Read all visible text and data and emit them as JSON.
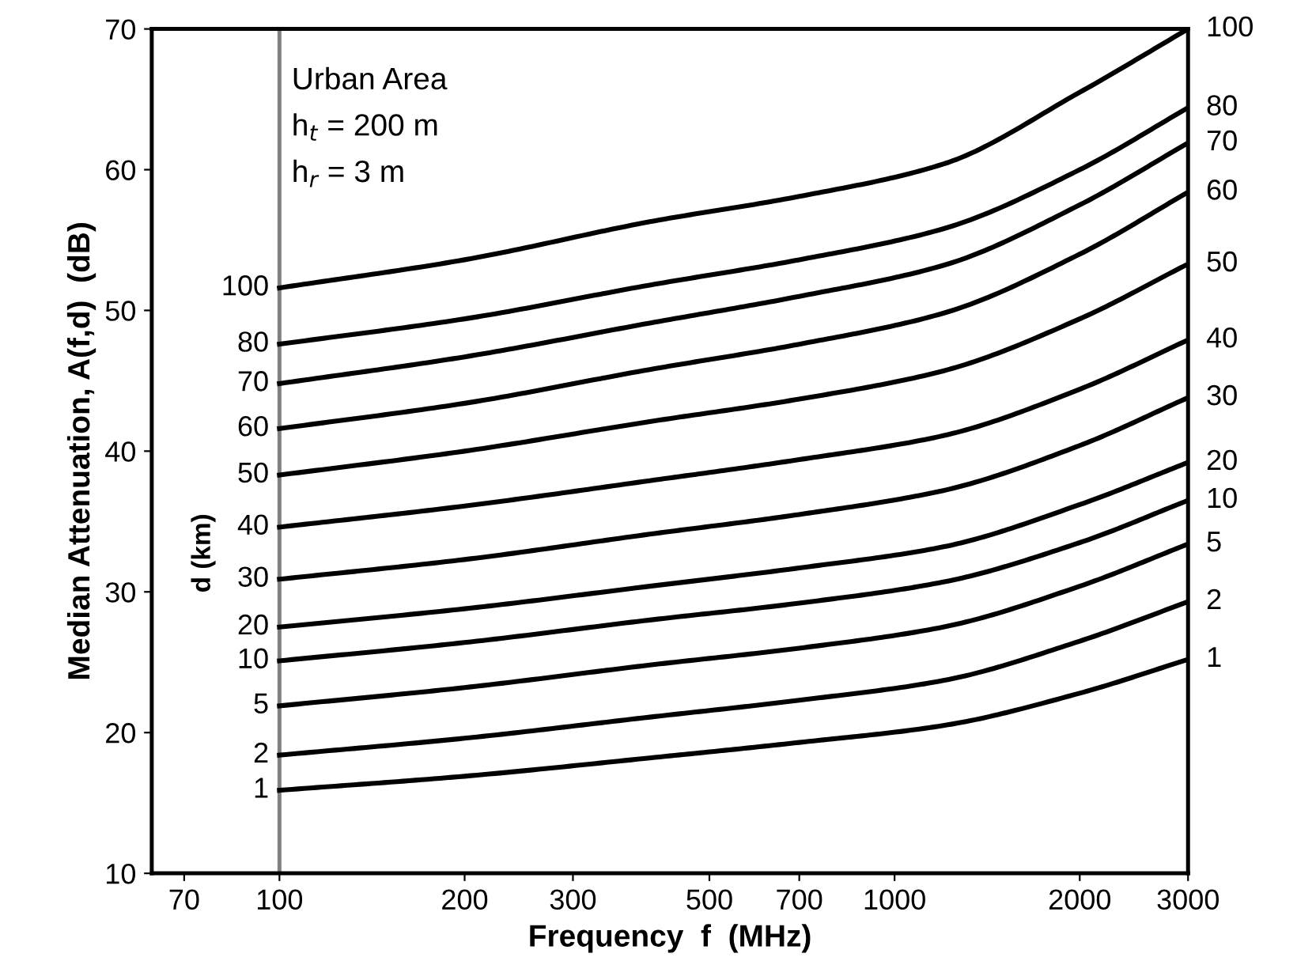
{
  "chart_data": {
    "type": "line",
    "xlabel": "Frequency  f  (MHz)",
    "ylabel": "Median Attenuation, A(f,d)  (dB)",
    "legend_title": "d (km)",
    "log": "x",
    "xlim": [
      62,
      3000
    ],
    "xticks": [
      70,
      100,
      200,
      300,
      500,
      700,
      1000,
      2000,
      3000
    ],
    "ylim": [
      10,
      70
    ],
    "yticks": [
      10,
      20,
      30,
      40,
      50,
      60,
      70
    ],
    "x": [
      100,
      200,
      400,
      700,
      1200,
      2000,
      3000
    ],
    "grid": false,
    "marker": "none",
    "line_style": "solid",
    "ref_lines": [
      {
        "axis": "x",
        "value": 100,
        "color": "#808080"
      }
    ],
    "annotations": [
      "Urban Area",
      "h$_{t}$ = 200 m",
      "h$_{r}$ = 3 m"
    ],
    "series": [
      {
        "name": "100",
        "color": "#000000",
        "values": [
          51.6,
          53.6,
          56.3,
          58.1,
          60.4,
          65.5,
          70.0
        ]
      },
      {
        "name": "80",
        "color": "#000000",
        "values": [
          47.6,
          49.4,
          51.8,
          53.6,
          55.8,
          60.0,
          64.4
        ]
      },
      {
        "name": "70",
        "color": "#000000",
        "values": [
          44.8,
          46.7,
          49.1,
          51.0,
          53.2,
          57.5,
          61.9
        ]
      },
      {
        "name": "60",
        "color": "#000000",
        "values": [
          41.6,
          43.4,
          45.8,
          47.6,
          49.8,
          54.0,
          58.4
        ]
      },
      {
        "name": "50",
        "color": "#000000",
        "values": [
          38.3,
          40.0,
          42.1,
          43.7,
          45.7,
          49.4,
          53.3
        ]
      },
      {
        "name": "40",
        "color": "#000000",
        "values": [
          34.6,
          36.1,
          37.9,
          39.4,
          41.1,
          44.4,
          47.9
        ]
      },
      {
        "name": "30",
        "color": "#000000",
        "values": [
          30.9,
          32.3,
          34.1,
          35.5,
          37.2,
          40.4,
          43.8
        ]
      },
      {
        "name": "20",
        "color": "#000000",
        "values": [
          27.5,
          28.8,
          30.4,
          31.7,
          33.2,
          36.2,
          39.2
        ]
      },
      {
        "name": "10",
        "color": "#000000",
        "values": [
          25.1,
          26.4,
          28.0,
          29.2,
          30.7,
          33.5,
          36.5
        ]
      },
      {
        "name": "5",
        "color": "#000000",
        "values": [
          21.9,
          23.2,
          24.8,
          26.0,
          27.5,
          30.4,
          33.4
        ]
      },
      {
        "name": "2",
        "color": "#000000",
        "values": [
          18.4,
          19.6,
          21.1,
          22.3,
          23.7,
          26.5,
          29.3
        ]
      },
      {
        "name": "1",
        "color": "#000000",
        "values": [
          15.9,
          16.9,
          18.2,
          19.3,
          20.5,
          22.8,
          25.2
        ]
      }
    ]
  }
}
